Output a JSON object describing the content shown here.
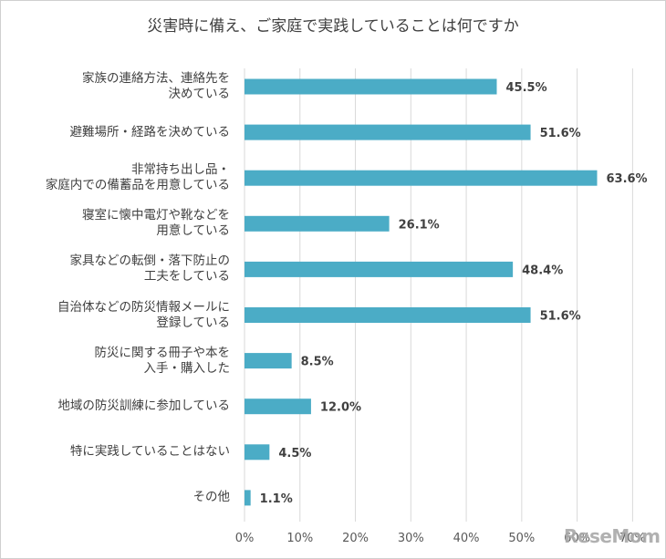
{
  "chart_data": {
    "type": "bar",
    "orientation": "horizontal",
    "title": "災害時に備え、ご家庭で実践していることは何ですか",
    "categories": [
      [
        "家族の連絡方法、連絡先を",
        "決めている"
      ],
      [
        "避難場所・経路を決めている"
      ],
      [
        "非常持ち出し品・",
        "家庭内での備蓄品を用意している"
      ],
      [
        "寝室に懐中電灯や靴などを",
        "用意している"
      ],
      [
        "家具などの転倒・落下防止の",
        "工夫をしている"
      ],
      [
        "自治体などの防災情報メールに",
        "登録している"
      ],
      [
        "防災に関する冊子や本を",
        "入手・購入した"
      ],
      [
        "地域の防災訓練に参加している"
      ],
      [
        "特に実践していることはない"
      ],
      [
        "その他"
      ]
    ],
    "values": [
      45.5,
      51.6,
      63.6,
      26.1,
      48.4,
      51.6,
      8.5,
      12.0,
      4.5,
      1.1
    ],
    "value_labels": [
      "45.5%",
      "51.6%",
      "63.6%",
      "26.1%",
      "48.4%",
      "51.6%",
      "8.5%",
      "12.0%",
      "4.5%",
      "1.1%"
    ],
    "xlim": [
      0,
      70
    ],
    "xticks": [
      "0%",
      "10%",
      "20%",
      "30%",
      "40%",
      "50%",
      "60%",
      "70%"
    ],
    "grid": true,
    "bar_color": "#4BACC6",
    "grid_color": "#d9d9d9"
  },
  "watermark": "ReseMom"
}
